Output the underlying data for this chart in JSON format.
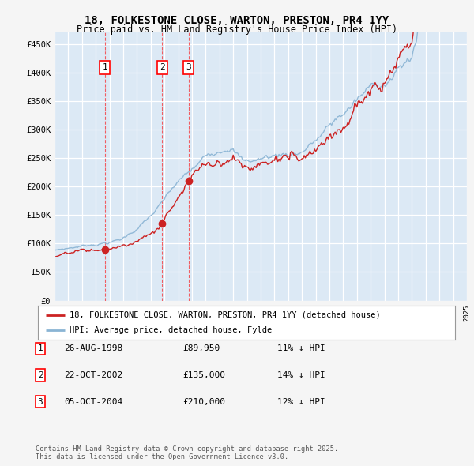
{
  "title_line1": "18, FOLKESTONE CLOSE, WARTON, PRESTON, PR4 1YY",
  "title_line2": "Price paid vs. HM Land Registry's House Price Index (HPI)",
  "fig_bg_color": "#f5f5f5",
  "plot_bg_color": "#dce9f5",
  "grid_color": "#ffffff",
  "hpi_color": "#8ab4d4",
  "price_color": "#cc2222",
  "ylim": [
    0,
    470000
  ],
  "yticks": [
    0,
    50000,
    100000,
    150000,
    200000,
    250000,
    300000,
    350000,
    400000,
    450000
  ],
  "ytick_labels": [
    "£0",
    "£50K",
    "£100K",
    "£150K",
    "£200K",
    "£250K",
    "£300K",
    "£350K",
    "£400K",
    "£450K"
  ],
  "sale_dates": [
    "1998-08-26",
    "2002-10-22",
    "2004-10-05"
  ],
  "sale_prices": [
    89950,
    135000,
    210000
  ],
  "sale_labels": [
    "1",
    "2",
    "3"
  ],
  "legend_line1": "18, FOLKESTONE CLOSE, WARTON, PRESTON, PR4 1YY (detached house)",
  "legend_line2": "HPI: Average price, detached house, Fylde",
  "table_rows": [
    [
      "1",
      "26-AUG-1998",
      "£89,950",
      "11% ↓ HPI"
    ],
    [
      "2",
      "22-OCT-2002",
      "£135,000",
      "14% ↓ HPI"
    ],
    [
      "3",
      "05-OCT-2004",
      "£210,000",
      "12% ↓ HPI"
    ]
  ],
  "footer": "Contains HM Land Registry data © Crown copyright and database right 2025.\nThis data is licensed under the Open Government Licence v3.0."
}
